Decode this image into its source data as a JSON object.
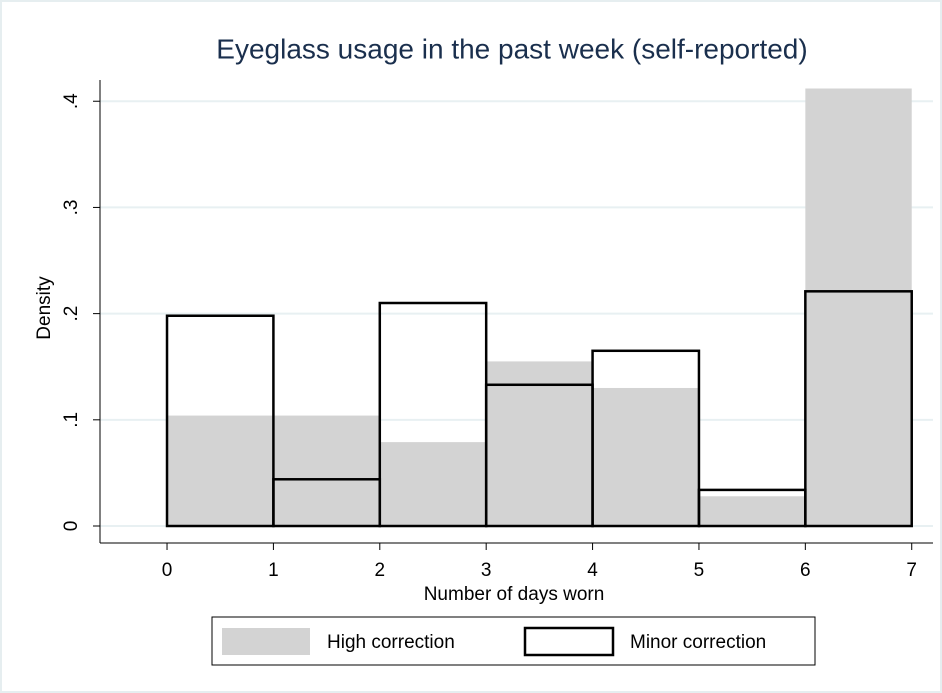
{
  "chart_data": {
    "type": "histogram",
    "title": "Eyeglass usage in the past week (self-reported)",
    "x_label": "Number of days worn",
    "y_label": "Density",
    "bins": [
      0,
      1,
      2,
      3,
      4,
      5,
      6,
      7
    ],
    "series": [
      {
        "name": "High correction",
        "color": "#d3d3d3",
        "fill": true,
        "values": [
          0.104,
          0.104,
          0.079,
          0.155,
          0.13,
          0.028,
          0.412
        ]
      },
      {
        "name": "Minor correction",
        "color": "#000000",
        "fill": false,
        "values": [
          0.198,
          0.044,
          0.21,
          0.133,
          0.165,
          0.034,
          0.221
        ]
      }
    ],
    "xlim": [
      -0.63,
      7.2
    ],
    "xticks": [
      0,
      1,
      2,
      3,
      4,
      5,
      6,
      7
    ],
    "ylim": [
      -0.016,
      0.42
    ],
    "yticks": [
      0,
      {
        "value": 0.1,
        "label": ".1"
      },
      {
        "value": 0.2,
        "label": ".2"
      },
      {
        "value": 0.3,
        "label": ".3"
      },
      {
        "value": 0.4,
        "label": ".4"
      }
    ],
    "grid": true,
    "legend": "bottom"
  }
}
